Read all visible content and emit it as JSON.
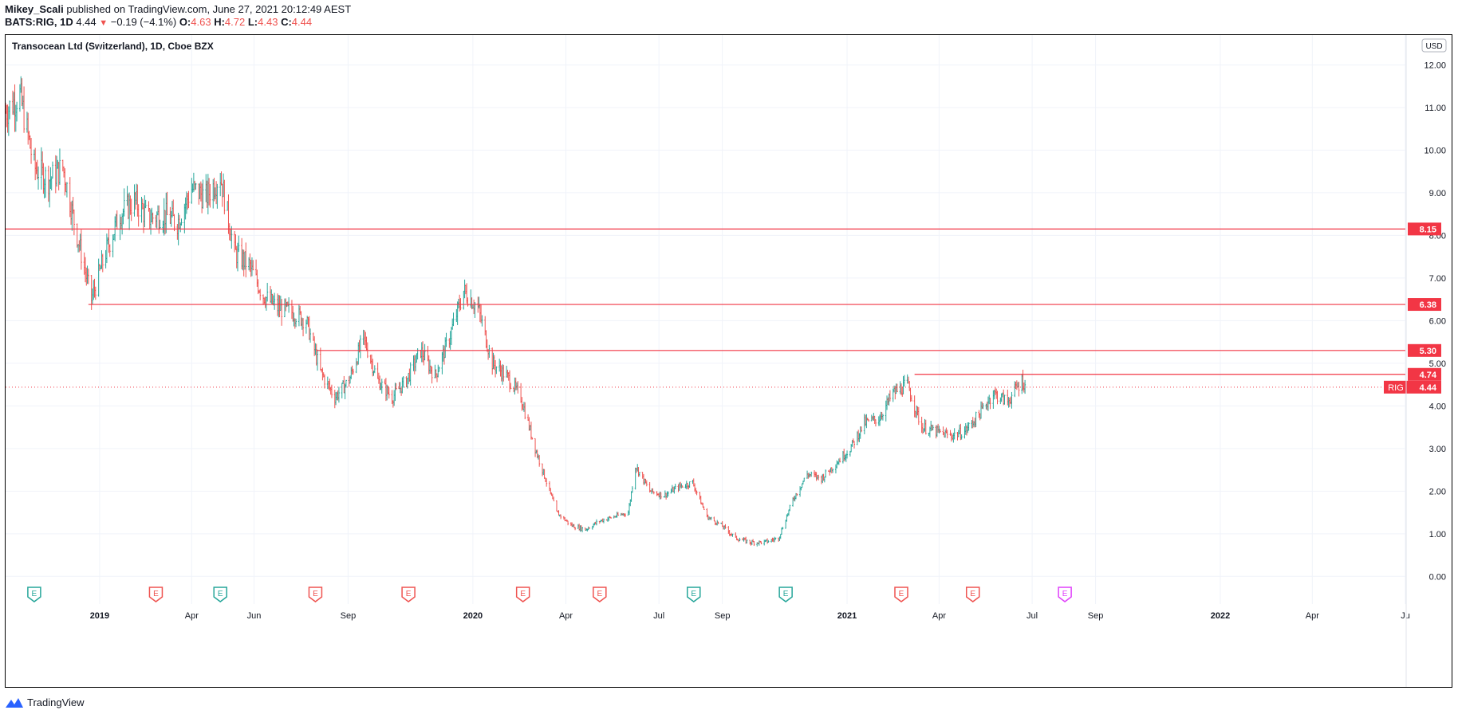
{
  "header": {
    "author": "Mikey_Scali",
    "published_text": "published on TradingView.com, June 27, 2021 20:12:49 AEST",
    "symbol": "BATS:RIG, 1D",
    "last": "4.44",
    "change_arrow": "▼",
    "change": "−0.19 (−4.1%)",
    "o_label": "O:",
    "o": "4.63",
    "h_label": "H:",
    "h": "4.72",
    "l_label": "L:",
    "l": "4.43",
    "c_label": "C:",
    "c": "4.44"
  },
  "footer": {
    "brand": "TradingView"
  },
  "chart_data": {
    "type": "candlestick",
    "title": "Transocean Ltd (Switzerland), 1D, Cboe BZX",
    "currency": "USD",
    "ylim": [
      -0.2,
      12.7
    ],
    "y_ticks": [
      "0.00",
      "1.00",
      "2.00",
      "3.00",
      "4.00",
      "5.00",
      "6.00",
      "7.00",
      "8.00",
      "9.00",
      "10.00",
      "11.00",
      "12.00"
    ],
    "x_ticks": [
      {
        "label": "2019",
        "bold": true,
        "date": "2019-01-01"
      },
      {
        "label": "Apr",
        "date": "2019-04-01"
      },
      {
        "label": "Jun",
        "date": "2019-06-01"
      },
      {
        "label": "Sep",
        "date": "2019-09-01"
      },
      {
        "label": "2020",
        "bold": true,
        "date": "2020-01-01"
      },
      {
        "label": "Apr",
        "date": "2020-04-01"
      },
      {
        "label": "Jul",
        "date": "2020-07-01"
      },
      {
        "label": "Sep",
        "date": "2020-09-01"
      },
      {
        "label": "2021",
        "bold": true,
        "date": "2021-01-01"
      },
      {
        "label": "Apr",
        "date": "2021-04-01"
      },
      {
        "label": "Jul",
        "date": "2021-07-01"
      },
      {
        "label": "Sep",
        "date": "2021-09-01"
      },
      {
        "label": "2022",
        "bold": true,
        "date": "2022-01-01"
      },
      {
        "label": "Apr",
        "date": "2022-04-01"
      },
      {
        "label": "Ju",
        "date": "2022-07-01"
      }
    ],
    "x_range": [
      "2018-10-01",
      "2022-07-01"
    ],
    "series": [
      {
        "name": "RIG",
        "points": [
          [
            "2018-10-01",
            10.9
          ],
          [
            "2018-10-15",
            11.3
          ],
          [
            "2018-10-29",
            9.6
          ],
          [
            "2018-11-12",
            9.3
          ],
          [
            "2018-11-26",
            9.6
          ],
          [
            "2018-12-10",
            8.0
          ],
          [
            "2018-12-24",
            6.5
          ],
          [
            "2019-01-07",
            7.6
          ],
          [
            "2019-01-21",
            8.5
          ],
          [
            "2019-02-04",
            8.8
          ],
          [
            "2019-02-18",
            8.4
          ],
          [
            "2019-03-04",
            8.5
          ],
          [
            "2019-03-18",
            8.3
          ],
          [
            "2019-04-01",
            9.1
          ],
          [
            "2019-04-15",
            8.9
          ],
          [
            "2019-04-29",
            9.4
          ],
          [
            "2019-05-13",
            7.6
          ],
          [
            "2019-05-27",
            7.3
          ],
          [
            "2019-06-10",
            6.6
          ],
          [
            "2019-06-24",
            6.3
          ],
          [
            "2019-07-08",
            6.2
          ],
          [
            "2019-07-22",
            6.0
          ],
          [
            "2019-08-05",
            4.8
          ],
          [
            "2019-08-19",
            4.2
          ],
          [
            "2019-09-02",
            4.6
          ],
          [
            "2019-09-16",
            5.6
          ],
          [
            "2019-09-30",
            4.6
          ],
          [
            "2019-10-14",
            4.2
          ],
          [
            "2019-10-28",
            4.6
          ],
          [
            "2019-11-11",
            5.3
          ],
          [
            "2019-11-25",
            4.7
          ],
          [
            "2019-12-09",
            5.6
          ],
          [
            "2019-12-23",
            6.7
          ],
          [
            "2020-01-06",
            6.3
          ],
          [
            "2020-01-20",
            5.0
          ],
          [
            "2020-02-03",
            4.7
          ],
          [
            "2020-02-17",
            4.2
          ],
          [
            "2020-03-02",
            3.0
          ],
          [
            "2020-03-09",
            2.5
          ],
          [
            "2020-03-23",
            1.5
          ],
          [
            "2020-04-06",
            1.2
          ],
          [
            "2020-04-20",
            1.1
          ],
          [
            "2020-05-04",
            1.3
          ],
          [
            "2020-05-18",
            1.4
          ],
          [
            "2020-06-01",
            1.5
          ],
          [
            "2020-06-08",
            2.6
          ],
          [
            "2020-06-22",
            2.0
          ],
          [
            "2020-07-06",
            1.9
          ],
          [
            "2020-07-20",
            2.1
          ],
          [
            "2020-08-03",
            2.2
          ],
          [
            "2020-08-17",
            1.4
          ],
          [
            "2020-08-31",
            1.2
          ],
          [
            "2020-09-14",
            0.9
          ],
          [
            "2020-09-28",
            0.8
          ],
          [
            "2020-10-12",
            0.8
          ],
          [
            "2020-10-26",
            0.9
          ],
          [
            "2020-11-09",
            1.8
          ],
          [
            "2020-11-23",
            2.4
          ],
          [
            "2020-12-07",
            2.3
          ],
          [
            "2021-01-04",
            3.0
          ],
          [
            "2021-01-18",
            3.6
          ],
          [
            "2021-02-01",
            3.7
          ],
          [
            "2021-02-15",
            4.3
          ],
          [
            "2021-03-01",
            4.5
          ],
          [
            "2021-03-15",
            3.5
          ],
          [
            "2021-03-29",
            3.4
          ],
          [
            "2021-04-12",
            3.3
          ],
          [
            "2021-04-26",
            3.4
          ],
          [
            "2021-05-10",
            3.8
          ],
          [
            "2021-05-24",
            4.3
          ],
          [
            "2021-06-07",
            4.1
          ],
          [
            "2021-06-21",
            4.6
          ],
          [
            "2021-06-25",
            4.44
          ]
        ]
      }
    ],
    "horizontal_lines": [
      {
        "value": 8.15,
        "label": "8.15",
        "from": "2018-10-01"
      },
      {
        "value": 6.38,
        "label": "6.38",
        "from": "2018-12-21"
      },
      {
        "value": 5.3,
        "label": "5.30",
        "from": "2019-08-01"
      },
      {
        "value": 4.74,
        "label": "4.74",
        "from": "2021-03-08"
      }
    ],
    "last_price": {
      "symbol": "RIG",
      "value": 4.44,
      "label": "4.44"
    },
    "earnings_markers": [
      {
        "date": "2018-10-29",
        "color": "#26a69a"
      },
      {
        "date": "2019-02-25",
        "color": "#ef5350"
      },
      {
        "date": "2019-04-29",
        "color": "#26a69a"
      },
      {
        "date": "2019-07-31",
        "color": "#ef5350"
      },
      {
        "date": "2019-10-30",
        "color": "#ef5350"
      },
      {
        "date": "2020-02-19",
        "color": "#ef5350"
      },
      {
        "date": "2020-05-04",
        "color": "#ef5350"
      },
      {
        "date": "2020-08-04",
        "color": "#26a69a"
      },
      {
        "date": "2020-11-02",
        "color": "#26a69a"
      },
      {
        "date": "2021-02-23",
        "color": "#ef5350"
      },
      {
        "date": "2021-05-04",
        "color": "#ef5350"
      },
      {
        "date": "2021-08-02",
        "color": "#e040fb"
      }
    ],
    "colors": {
      "up": "#26a69a",
      "down": "#ef5350",
      "line": "#f23645",
      "grid": "#f0f3fa"
    }
  }
}
